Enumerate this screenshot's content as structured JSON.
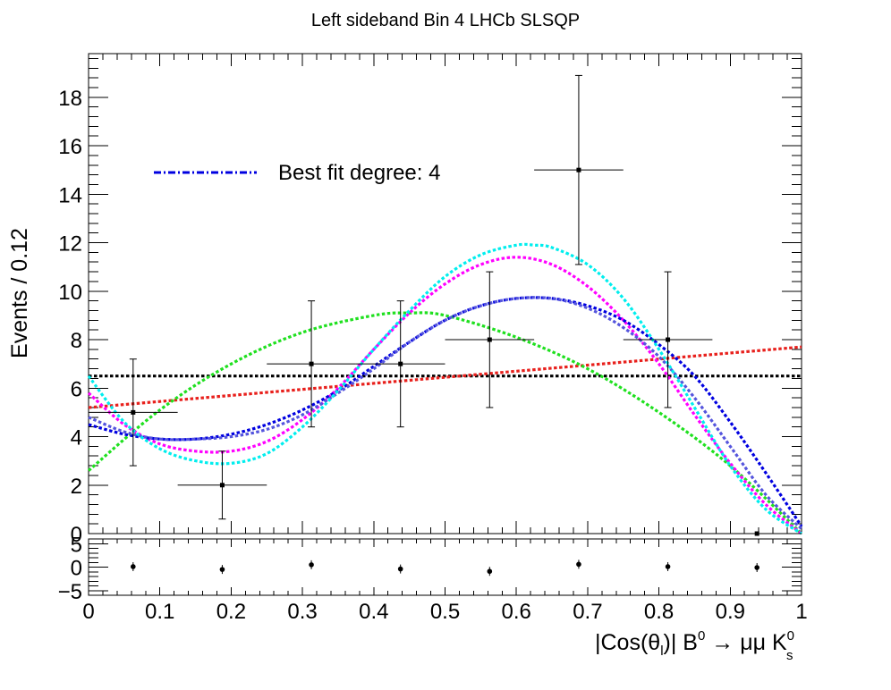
{
  "chart_data": [
    {
      "panel": "main",
      "type": "scatter",
      "title": "Left sideband Bin 4 LHCb SLSQP",
      "ylabel": "Events / 0.12",
      "xlim": [
        0,
        1
      ],
      "ylim": [
        0,
        19.8
      ],
      "y_ticks": [
        0,
        2,
        4,
        6,
        8,
        10,
        12,
        14,
        16,
        18
      ],
      "legend": {
        "placement": "upper-left",
        "entries": [
          "Best fit degree: 4"
        ]
      },
      "data_points": {
        "x": [
          0.0625,
          0.1875,
          0.3125,
          0.4375,
          0.5625,
          0.6875,
          0.8125,
          0.9375
        ],
        "y": [
          5,
          2,
          7,
          7,
          8,
          15,
          8,
          0
        ],
        "x_err": [
          0.0625,
          0.0625,
          0.0625,
          0.0625,
          0.0625,
          0.0625,
          0.0625,
          0.0625
        ],
        "y_err_low": [
          2.2,
          1.4,
          2.6,
          2.6,
          2.8,
          3.9,
          2.8,
          0
        ],
        "y_err_high": [
          2.2,
          1.4,
          2.6,
          2.6,
          2.8,
          3.9,
          2.8,
          0
        ]
      },
      "series": [
        {
          "degree": 0,
          "color": "#000000",
          "x": [
            0,
            1
          ],
          "y": [
            6.5,
            6.5
          ]
        },
        {
          "degree": 1,
          "color": "#e8201c",
          "x": [
            0,
            0.5,
            1
          ],
          "y": [
            5.2,
            6.45,
            7.7
          ]
        },
        {
          "degree": 2,
          "color": "#1fe01f",
          "x": [
            0,
            0.1,
            0.2,
            0.3,
            0.4,
            0.45,
            0.5,
            0.6,
            0.7,
            0.8,
            0.9,
            1.0
          ],
          "y": [
            2.6,
            5.1,
            7.0,
            8.3,
            9.0,
            9.1,
            9.0,
            8.1,
            6.8,
            5.0,
            2.8,
            0.0
          ]
        },
        {
          "degree": 3,
          "color": "#ff00ff",
          "x": [
            0,
            0.05,
            0.1,
            0.15,
            0.2,
            0.25,
            0.3,
            0.35,
            0.4,
            0.45,
            0.5,
            0.55,
            0.6,
            0.65,
            0.7,
            0.75,
            0.8,
            0.85,
            0.9,
            0.95,
            1.0
          ],
          "y": [
            5.8,
            4.5,
            3.7,
            3.4,
            3.4,
            3.8,
            4.7,
            6.0,
            7.6,
            9.1,
            10.3,
            11.1,
            11.4,
            11.1,
            10.2,
            8.8,
            7.0,
            4.9,
            2.9,
            1.2,
            0.0
          ]
        },
        {
          "degree": 4,
          "color": "#0000e0",
          "x": [
            0,
            0.05,
            0.1,
            0.15,
            0.2,
            0.25,
            0.3,
            0.35,
            0.4,
            0.45,
            0.5,
            0.55,
            0.6,
            0.65,
            0.7,
            0.75,
            0.8,
            0.85,
            0.9,
            0.95,
            1.0
          ],
          "y": [
            4.5,
            4.1,
            3.9,
            3.9,
            4.1,
            4.5,
            5.1,
            5.9,
            6.9,
            7.9,
            8.8,
            9.4,
            9.7,
            9.7,
            9.4,
            8.8,
            7.8,
            6.5,
            4.6,
            2.5,
            0.3
          ]
        },
        {
          "degree": "4b",
          "color": "#5555dd",
          "x": [
            0,
            0.05,
            0.1,
            0.15,
            0.2,
            0.25,
            0.3,
            0.35,
            0.4,
            0.45,
            0.5,
            0.55,
            0.6,
            0.65,
            0.7,
            0.75,
            0.8,
            0.85,
            0.9,
            0.95,
            1.0
          ],
          "y": [
            4.8,
            4.2,
            3.9,
            3.9,
            4.0,
            4.3,
            4.9,
            5.8,
            6.8,
            7.9,
            8.8,
            9.4,
            9.7,
            9.7,
            9.3,
            8.5,
            7.3,
            5.6,
            3.6,
            1.6,
            0.2
          ]
        },
        {
          "degree": 5,
          "color": "#00eeee",
          "x": [
            0,
            0.05,
            0.1,
            0.15,
            0.2,
            0.25,
            0.3,
            0.35,
            0.4,
            0.45,
            0.5,
            0.55,
            0.6,
            0.625,
            0.65,
            0.7,
            0.75,
            0.8,
            0.85,
            0.9,
            0.95,
            1.0
          ],
          "y": [
            6.5,
            4.6,
            3.5,
            3.0,
            2.9,
            3.3,
            4.4,
            5.9,
            7.6,
            9.2,
            10.6,
            11.5,
            11.9,
            11.9,
            11.8,
            11.1,
            9.7,
            7.6,
            5.2,
            2.8,
            1.0,
            0.0
          ]
        }
      ]
    },
    {
      "panel": "ratio",
      "type": "scatter",
      "xlabel_parts": {
        "pre": "|Cos(θ",
        "sub1": "l",
        "mid": ")| B",
        "sup1": "0",
        "arrow": " → μμ K",
        "sup2": "0",
        "sub2": "s"
      },
      "xlim": [
        0,
        1
      ],
      "ylim": [
        -6,
        6
      ],
      "y_ticks": [
        -5,
        0,
        5
      ],
      "x_ticks": [
        0,
        0.1,
        0.2,
        0.3,
        0.4,
        0.5,
        0.6,
        0.7,
        0.8,
        0.9,
        1
      ],
      "x_tick_labels": [
        "0",
        "0.1",
        "0.2",
        "0.3",
        "0.4",
        "0.5",
        "0.6",
        "0.7",
        "0.8",
        "0.9",
        "1"
      ],
      "y_tick_labels": [
        "−5",
        "0",
        "5"
      ],
      "points": {
        "x": [
          0.0625,
          0.1875,
          0.3125,
          0.4375,
          0.5625,
          0.6875,
          0.8125,
          0.9375
        ],
        "y": [
          0.1,
          -0.5,
          0.5,
          -0.4,
          -0.9,
          0.6,
          0.1,
          -0.1
        ]
      }
    }
  ]
}
